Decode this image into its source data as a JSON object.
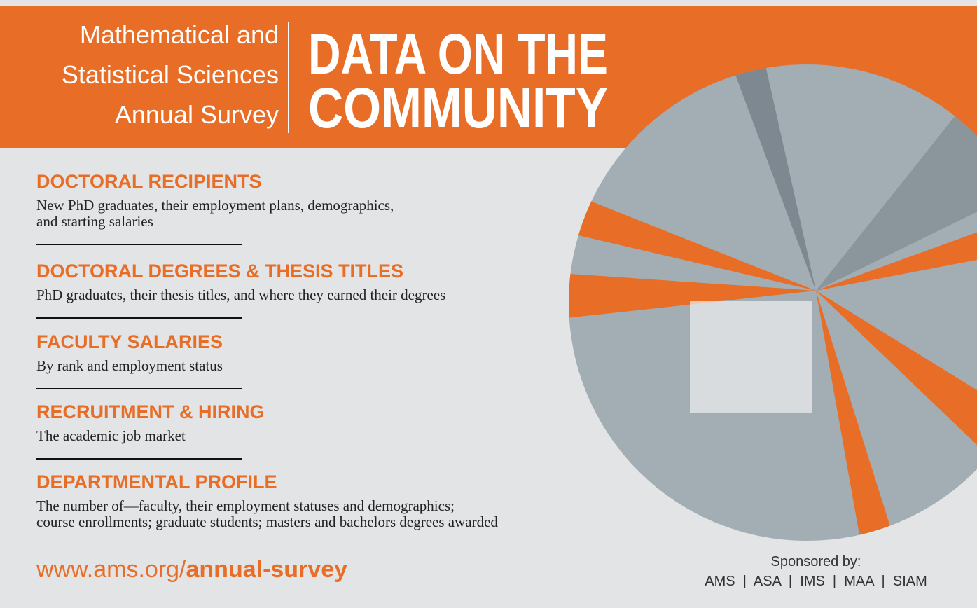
{
  "header": {
    "subtitle_lines": [
      "Mathematical and",
      "Statistical Sciences",
      "Annual Survey"
    ],
    "title_lines": [
      "DATA ON THE",
      "COMMUNITY"
    ]
  },
  "sections": [
    {
      "heading": "DOCTORAL RECIPIENTS",
      "description": [
        "New PhD graduates, their employment plans, demographics,",
        "and starting salaries"
      ]
    },
    {
      "heading": "DOCTORAL DEGREES & THESIS TITLES",
      "description": [
        "PhD graduates, their thesis titles, and where they earned their degrees"
      ]
    },
    {
      "heading": "FACULTY SALARIES",
      "description": [
        "By rank and employment status"
      ]
    },
    {
      "heading": "RECRUITMENT & HIRING",
      "description": [
        "The academic job market"
      ]
    },
    {
      "heading": "DEPARTMENTAL PROFILE",
      "description": [
        "The number of—faculty, their employment statuses and demographics;",
        "course enrollments; graduate students; masters and bachelors degrees awarded"
      ]
    }
  ],
  "url": {
    "prefix": "www.ams.org/",
    "path": "annual-survey"
  },
  "sponsors": {
    "label": "Sponsored by:",
    "names": "AMS  |  ASA  |  IMS  |  MAA  |  SIAM"
  }
}
